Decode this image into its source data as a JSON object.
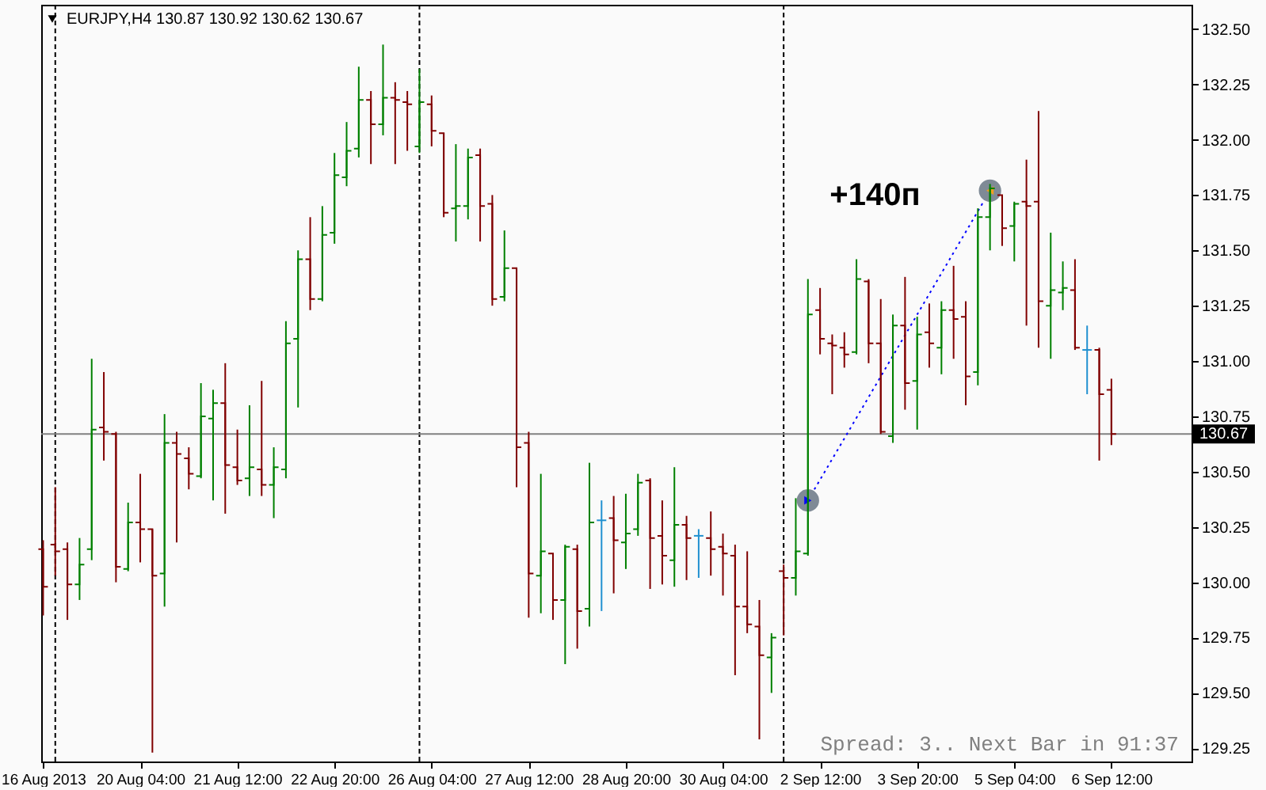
{
  "chart_data": {
    "type": "candlestick",
    "title": "EURJPY,H4 130.87 130.92 130.62 130.67",
    "categories": [
      "16 Aug 2013",
      null,
      null,
      null,
      null,
      null,
      null,
      null,
      "20 Aug 04:00",
      null,
      null,
      null,
      null,
      null,
      null,
      null,
      "21 Aug 12:00",
      null,
      null,
      null,
      null,
      null,
      null,
      null,
      "22 Aug 20:00",
      null,
      null,
      null,
      null,
      null,
      null,
      null,
      "26 Aug 04:00",
      null,
      null,
      null,
      null,
      null,
      null,
      null,
      "27 Aug 12:00",
      null,
      null,
      null,
      null,
      null,
      null,
      null,
      "28 Aug 20:00",
      null,
      null,
      null,
      null,
      null,
      null,
      null,
      "30 Aug 04:00",
      null,
      null,
      null,
      null,
      null,
      null,
      null,
      "2 Sep 12:00",
      null,
      null,
      null,
      null,
      null,
      null,
      null,
      "3 Sep 20:00",
      null,
      null,
      null,
      null,
      null,
      null,
      null,
      "5 Sep 04:00",
      null,
      null,
      null,
      null,
      null,
      null,
      null,
      "6 Sep 12:00"
    ],
    "ohlc": [
      [
        130.15,
        130.19,
        129.85,
        129.98
      ],
      [
        130.17,
        130.43,
        130.03,
        130.14
      ],
      [
        130.15,
        130.18,
        129.83,
        129.99
      ],
      [
        129.99,
        130.2,
        129.92,
        130.08
      ],
      [
        130.15,
        131.01,
        130.1,
        130.69
      ],
      [
        130.7,
        130.95,
        130.55,
        130.68
      ],
      [
        130.67,
        130.68,
        130.0,
        130.07
      ],
      [
        130.06,
        130.36,
        130.05,
        130.27
      ],
      [
        130.27,
        130.49,
        130.09,
        130.24
      ],
      [
        130.24,
        130.24,
        129.23,
        130.03
      ],
      [
        130.04,
        130.76,
        129.89,
        130.63
      ],
      [
        130.63,
        130.68,
        130.18,
        130.58
      ],
      [
        130.56,
        130.61,
        130.42,
        130.49
      ],
      [
        130.48,
        130.9,
        130.47,
        130.75
      ],
      [
        130.74,
        130.87,
        130.37,
        130.81
      ],
      [
        130.81,
        130.99,
        130.31,
        130.53
      ],
      [
        130.52,
        130.69,
        130.44,
        130.46
      ],
      [
        130.47,
        130.8,
        130.39,
        130.52
      ],
      [
        130.51,
        130.91,
        130.39,
        130.44
      ],
      [
        130.44,
        130.61,
        130.29,
        130.52
      ],
      [
        130.51,
        131.18,
        130.47,
        131.08
      ],
      [
        131.1,
        131.5,
        130.79,
        131.46
      ],
      [
        131.46,
        131.65,
        131.23,
        131.28
      ],
      [
        131.28,
        131.7,
        131.27,
        131.57
      ],
      [
        131.58,
        131.94,
        131.53,
        131.84
      ],
      [
        131.83,
        132.08,
        131.79,
        131.95
      ],
      [
        131.96,
        132.33,
        131.92,
        132.18
      ],
      [
        132.18,
        132.22,
        131.89,
        132.07
      ],
      [
        132.07,
        132.43,
        132.02,
        132.19
      ],
      [
        132.19,
        132.26,
        131.89,
        132.18
      ],
      [
        132.17,
        132.22,
        131.95,
        132.16
      ],
      [
        131.97,
        132.32,
        131.94,
        132.17
      ],
      [
        132.16,
        132.2,
        131.97,
        132.04
      ],
      [
        132.03,
        132.03,
        131.65,
        131.67
      ],
      [
        131.69,
        131.98,
        131.54,
        131.7
      ],
      [
        131.7,
        131.96,
        131.64,
        131.92
      ],
      [
        131.93,
        131.96,
        131.54,
        131.7
      ],
      [
        131.71,
        131.75,
        131.25,
        131.28
      ],
      [
        131.29,
        131.59,
        131.27,
        131.42
      ],
      [
        131.42,
        131.42,
        130.43,
        130.61
      ],
      [
        130.63,
        130.68,
        129.84,
        130.04
      ],
      [
        130.03,
        130.49,
        129.86,
        130.14
      ],
      [
        130.13,
        130.13,
        129.83,
        129.92
      ],
      [
        129.92,
        130.17,
        129.63,
        130.16
      ],
      [
        130.15,
        130.17,
        129.7,
        129.87
      ],
      [
        129.88,
        130.54,
        129.8,
        130.27
      ],
      [
        130.28,
        130.37,
        129.87,
        130.28
      ],
      [
        130.29,
        130.39,
        129.95,
        130.19
      ],
      [
        130.18,
        130.4,
        130.06,
        130.22
      ],
      [
        130.24,
        130.49,
        130.21,
        130.45
      ],
      [
        130.46,
        130.47,
        129.97,
        130.2
      ],
      [
        130.21,
        130.37,
        129.99,
        130.12
      ],
      [
        130.1,
        130.52,
        129.98,
        130.26
      ],
      [
        130.26,
        130.3,
        130.01,
        130.2
      ],
      [
        130.21,
        130.24,
        130.02,
        130.21
      ],
      [
        130.2,
        130.32,
        130.03,
        130.15
      ],
      [
        130.16,
        130.22,
        129.94,
        130.13
      ],
      [
        130.12,
        130.17,
        129.58,
        129.89
      ],
      [
        129.89,
        130.14,
        129.77,
        129.81
      ],
      [
        129.8,
        129.92,
        129.29,
        129.67
      ],
      [
        129.66,
        129.77,
        129.5,
        129.75
      ],
      [
        130.05,
        130.08,
        129.76,
        130.02
      ],
      [
        130.02,
        130.38,
        129.94,
        130.14
      ],
      [
        130.13,
        131.37,
        130.12,
        131.21
      ],
      [
        131.23,
        131.33,
        131.03,
        131.1
      ],
      [
        131.08,
        131.12,
        130.85,
        131.07
      ],
      [
        131.06,
        131.13,
        130.97,
        131.03
      ],
      [
        131.04,
        131.46,
        131.03,
        131.37
      ],
      [
        131.36,
        131.37,
        130.99,
        131.08
      ],
      [
        131.08,
        131.28,
        130.67,
        130.68
      ],
      [
        130.66,
        131.21,
        130.63,
        131.16
      ],
      [
        131.16,
        131.38,
        130.78,
        130.9
      ],
      [
        130.91,
        131.2,
        130.69,
        131.12
      ],
      [
        131.13,
        131.26,
        130.97,
        131.08
      ],
      [
        131.06,
        131.27,
        130.94,
        131.23
      ],
      [
        131.23,
        131.43,
        131.01,
        131.19
      ],
      [
        131.2,
        131.27,
        130.8,
        130.93
      ],
      [
        130.95,
        131.69,
        130.89,
        131.65
      ],
      [
        131.65,
        131.8,
        131.5,
        131.78
      ],
      [
        131.75,
        131.75,
        131.52,
        131.6
      ],
      [
        131.61,
        131.72,
        131.45,
        131.71
      ],
      [
        131.72,
        131.91,
        131.16,
        131.7
      ],
      [
        131.72,
        132.13,
        131.06,
        131.27
      ],
      [
        131.25,
        131.58,
        131.01,
        131.32
      ],
      [
        131.31,
        131.45,
        131.23,
        131.33
      ],
      [
        131.32,
        131.46,
        131.05,
        131.06
      ],
      [
        131.05,
        131.16,
        130.85,
        131.05
      ],
      [
        131.05,
        131.06,
        130.55,
        130.85
      ],
      [
        130.87,
        130.92,
        130.62,
        130.67
      ]
    ],
    "colors": [
      "#800000",
      "#800000",
      "#800000",
      "#008000",
      "#008000",
      "#800000",
      "#800000",
      "#008000",
      "#800000",
      "#800000",
      "#008000",
      "#800000",
      "#800000",
      "#008000",
      "#008000",
      "#800000",
      "#800000",
      "#008000",
      "#800000",
      "#008000",
      "#008000",
      "#008000",
      "#800000",
      "#008000",
      "#008000",
      "#008000",
      "#008000",
      "#800000",
      "#008000",
      "#800000",
      "#800000",
      "#008000",
      "#800000",
      "#800000",
      "#008000",
      "#008000",
      "#800000",
      "#800000",
      "#008000",
      "#800000",
      "#800000",
      "#008000",
      "#800000",
      "#008000",
      "#800000",
      "#008000",
      "#2090d0",
      "#800000",
      "#008000",
      "#008000",
      "#800000",
      "#800000",
      "#008000",
      "#800000",
      "#2090d0",
      "#800000",
      "#800000",
      "#800000",
      "#800000",
      "#800000",
      "#008000",
      "#800000",
      "#008000",
      "#008000",
      "#800000",
      "#800000",
      "#800000",
      "#008000",
      "#800000",
      "#800000",
      "#008000",
      "#800000",
      "#008000",
      "#800000",
      "#008000",
      "#800000",
      "#800000",
      "#008000",
      "#008000",
      "#800000",
      "#008000",
      "#800000",
      "#800000",
      "#008000",
      "#008000",
      "#800000",
      "#2090d0",
      "#800000",
      "#800000"
    ],
    "ylim": [
      129.19,
      132.61
    ],
    "yticks": [
      129.25,
      {
        "value": 129.5,
        "label": "129.50"
      },
      129.75,
      {
        "value": 130,
        "label": "130.00"
      },
      130.25,
      {
        "value": 130.5,
        "label": "130.50"
      },
      130.75,
      {
        "value": 131,
        "label": "131.00"
      },
      131.25,
      {
        "value": 131.5,
        "label": "131.50"
      },
      131.75,
      {
        "value": 132,
        "label": "132.00"
      },
      132.25,
      {
        "value": 132.5,
        "label": "132.50"
      }
    ],
    "grid": "x",
    "ref_lines": [
      {
        "axis": "y",
        "value": 130.67,
        "label": "130.67",
        "color": "#808080"
      }
    ],
    "series": [
      {
        "type": "line",
        "color": "#0000ff",
        "line_style": "dotted",
        "marker": "circle",
        "values": [
          null,
          null,
          null,
          null,
          null,
          null,
          null,
          null,
          null,
          null,
          null,
          null,
          null,
          null,
          null,
          null,
          null,
          null,
          null,
          null,
          null,
          null,
          null,
          null,
          null,
          null,
          null,
          null,
          null,
          null,
          null,
          null,
          null,
          null,
          null,
          null,
          null,
          null,
          null,
          null,
          null,
          null,
          null,
          null,
          null,
          null,
          null,
          null,
          null,
          null,
          null,
          null,
          null,
          null,
          null,
          null,
          null,
          null,
          null,
          null,
          null,
          null,
          null,
          130.37,
          null,
          null,
          null,
          null,
          null,
          null,
          null,
          null,
          null,
          null,
          null,
          null,
          null,
          null,
          131.77,
          null,
          null,
          null,
          null,
          null,
          null,
          null,
          null,
          null,
          null
        ],
        "colors": [
          null,
          null,
          null,
          null,
          null,
          null,
          null,
          null,
          null,
          null,
          null,
          null,
          null,
          null,
          null,
          null,
          null,
          null,
          null,
          null,
          null,
          null,
          null,
          null,
          null,
          null,
          null,
          null,
          null,
          null,
          null,
          null,
          null,
          null,
          null,
          null,
          null,
          null,
          null,
          null,
          null,
          null,
          null,
          null,
          null,
          null,
          null,
          null,
          null,
          null,
          null,
          null,
          null,
          null,
          null,
          null,
          null,
          null,
          null,
          null,
          null,
          null,
          null,
          "#7f8a96",
          null,
          null,
          null,
          null,
          null,
          null,
          null,
          null,
          null,
          null,
          null,
          null,
          null,
          null,
          "#7f8a96",
          null,
          null,
          null,
          null,
          null,
          null,
          null,
          null,
          null,
          null
        ]
      }
    ],
    "annotations": [
      "+140п",
      "Spread: 3.. Next Bar in 91:37"
    ]
  }
}
